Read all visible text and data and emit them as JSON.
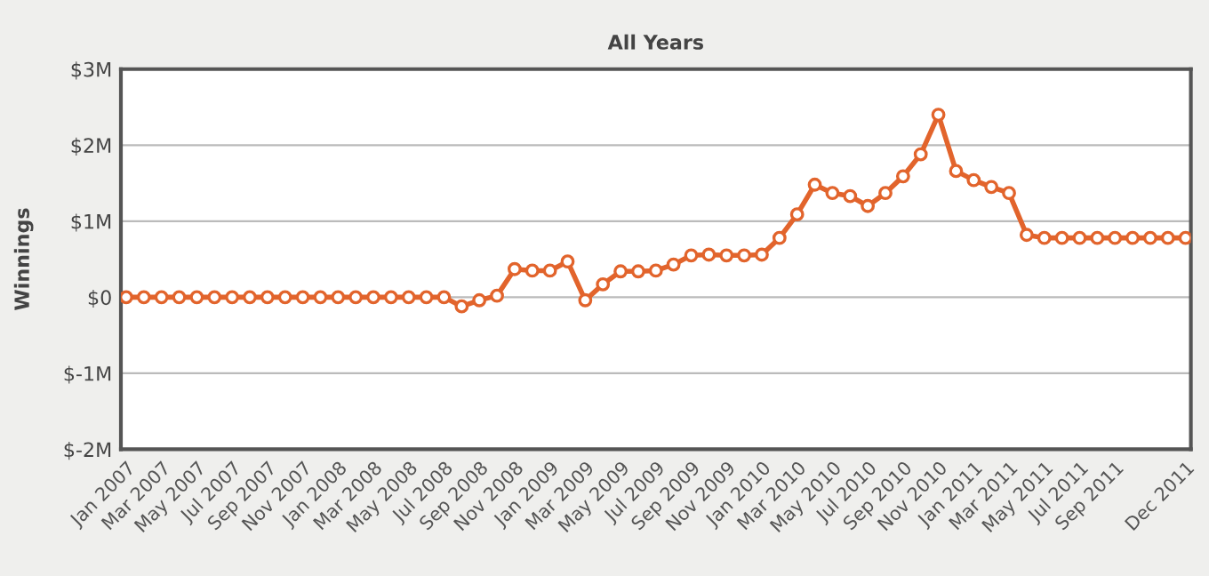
{
  "chart_data": {
    "type": "line",
    "title": "All Years",
    "ylabel": "Winnings",
    "categories": [
      "Jan 2007",
      null,
      "Mar 2007",
      null,
      "May 2007",
      null,
      "Jul 2007",
      null,
      "Sep 2007",
      null,
      "Nov 2007",
      null,
      "Jan 2008",
      null,
      "Mar 2008",
      null,
      "May 2008",
      null,
      "Jul 2008",
      null,
      "Sep 2008",
      null,
      "Nov 2008",
      null,
      "Jan 2009",
      null,
      "Mar 2009",
      null,
      "May 2009",
      null,
      "Jul 2009",
      null,
      "Sep 2009",
      null,
      "Nov 2009",
      null,
      "Jan 2010",
      null,
      "Mar 2010",
      null,
      "May 2010",
      null,
      "Jul 2010",
      null,
      "Sep 2010",
      null,
      "Nov 2010",
      null,
      "Jan 2011",
      null,
      "Mar 2011",
      null,
      "May 2011",
      null,
      "Jul 2011",
      null,
      "Sep 2011",
      null,
      null,
      null,
      "Dec 2011"
    ],
    "series": [
      {
        "color": "#e2642c",
        "values": [
          0,
          0,
          0,
          0,
          0,
          0,
          0,
          0,
          0,
          0,
          0,
          0,
          0,
          0,
          0,
          0,
          0,
          0,
          0,
          -0.12,
          -0.04,
          0.02,
          0.37,
          0.35,
          0.35,
          0.47,
          -0.04,
          0.17,
          0.34,
          0.34,
          0.35,
          0.43,
          0.55,
          0.56,
          0.55,
          0.55,
          0.56,
          0.78,
          1.09,
          1.48,
          1.37,
          1.33,
          1.2,
          1.37,
          1.59,
          1.88,
          2.4,
          1.66,
          1.54,
          1.45,
          1.37,
          0.82,
          0.78,
          0.78,
          0.78,
          0.78,
          0.78,
          0.78,
          0.78,
          0.78,
          0.78
        ]
      }
    ],
    "ylim": [
      -2,
      3
    ],
    "yticks": [
      {
        "value": -2,
        "label": "$-2M"
      },
      {
        "value": -1,
        "label": "$-1M"
      },
      {
        "value": 0,
        "label": "$0"
      },
      {
        "value": 1,
        "label": "$1M"
      },
      {
        "value": 2,
        "label": "$2M"
      },
      {
        "value": 3,
        "label": "$3M"
      }
    ],
    "grid": "y",
    "marker": "circle",
    "line_style": "solid"
  }
}
